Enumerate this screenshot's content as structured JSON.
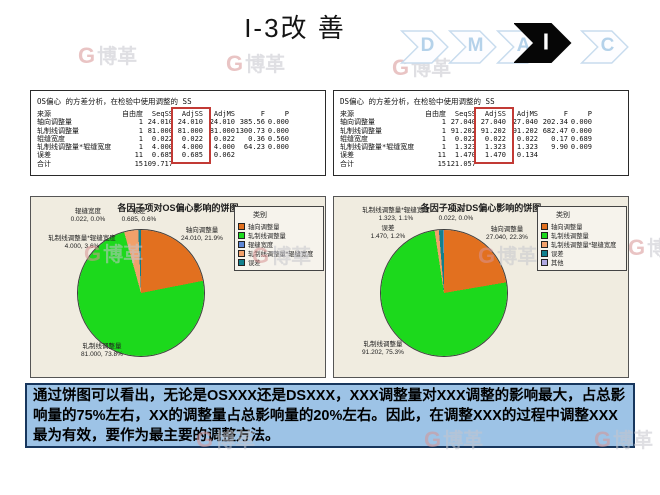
{
  "slide": {
    "title": "I-3改 善",
    "dmaic": {
      "steps": [
        {
          "label": "D",
          "active": false
        },
        {
          "label": "M",
          "active": false
        },
        {
          "label": "A",
          "active": false
        },
        {
          "label": "I",
          "active": true
        },
        {
          "label": "C",
          "active": false
        }
      ],
      "active_color": "#000000",
      "inactive_letter_color": "#B5D2EA"
    }
  },
  "watermark": {
    "logo": "G",
    "text": "博革"
  },
  "anova_left": {
    "title": "OS偏心 的方差分析，在检验中使用调整的 SS",
    "headers": [
      "来源",
      "自由度",
      "SeqSS",
      "AdjSS",
      "AdjMS",
      "F",
      "P"
    ],
    "rows": [
      [
        "轴向调整量",
        "1",
        "24.010",
        "24.010",
        "24.010",
        "385.56",
        "0.000"
      ],
      [
        "轧制线调整量",
        "1",
        "81.000",
        "81.000",
        "81.000",
        "1300.73",
        "0.000"
      ],
      [
        "辊缝宽度",
        "1",
        "0.022",
        "0.022",
        "0.022",
        "0.36",
        "0.560"
      ],
      [
        "轧制线调整量*辊缝宽度",
        "1",
        "4.000",
        "4.000",
        "4.000",
        "64.23",
        "0.000"
      ],
      [
        "误差",
        "11",
        "0.685",
        "0.685",
        "0.062",
        "",
        ""
      ],
      [
        "合计",
        "15",
        "109.717",
        "",
        "",
        "",
        ""
      ]
    ],
    "highlighted_column": "AdjSS",
    "highlight_color": "#c23a35"
  },
  "anova_right": {
    "title": "DS偏心 的方差分析，在检验中使用调整的 SS",
    "headers": [
      "来源",
      "自由度",
      "SeqSS",
      "AdjSS",
      "AdjMS",
      "F",
      "P"
    ],
    "rows": [
      [
        "轴向调整量",
        "1",
        "27.040",
        "27.040",
        "27.040",
        "202.34",
        "0.000"
      ],
      [
        "轧制线调整量",
        "1",
        "91.202",
        "91.202",
        "91.202",
        "682.47",
        "0.000"
      ],
      [
        "辊缝宽度",
        "1",
        "0.022",
        "0.022",
        "0.022",
        "0.17",
        "0.689"
      ],
      [
        "轧制线调整量*辊缝宽度",
        "1",
        "1.323",
        "1.323",
        "1.323",
        "9.90",
        "0.009"
      ],
      [
        "误差",
        "11",
        "1.470",
        "1.470",
        "0.134",
        "",
        ""
      ],
      [
        "合计",
        "15",
        "121.057",
        "",
        "",
        "",
        ""
      ]
    ],
    "highlighted_column": "AdjSS",
    "highlight_color": "#c23a35"
  },
  "chart_data": [
    {
      "type": "pie",
      "panel": "pieL",
      "title": "各因子项对OS偏心影响的饼图",
      "legend_title": "类别",
      "legend_position": "right",
      "background": "#F0ECE0",
      "slices": [
        {
          "label": "轴向调整量",
          "value": 24.01,
          "pct": 21.9,
          "value_label": "24.010, 21.9%",
          "color": "#E2701F"
        },
        {
          "label": "轧制线调整量",
          "value": 81.0,
          "pct": 73.8,
          "value_label": "81.000, 73.8%",
          "color": "#1CD91C"
        },
        {
          "label": "辊缝宽度",
          "value": 0.022,
          "pct": 0.0,
          "value_label": "0.022, 0.0%",
          "color": "#5E86D5"
        },
        {
          "label": "轧制线调整量*辊缝宽度",
          "value": 4.0,
          "pct": 3.6,
          "value_label": "4.000, 3.6%",
          "color": "#F2A06A"
        },
        {
          "label": "误差",
          "value": 0.685,
          "pct": 0.6,
          "value_label": "0.685, 0.6%",
          "color": "#11808D"
        }
      ]
    },
    {
      "type": "pie",
      "panel": "pieR",
      "title": "各因子项对DS偏心影响的饼图",
      "legend_title": "类别",
      "legend_position": "right",
      "background": "#F0ECE0",
      "slices": [
        {
          "label": "轴向调整量",
          "value": 27.04,
          "pct": 22.3,
          "value_label": "27.040, 22.3%",
          "color": "#E2701F"
        },
        {
          "label": "轧制线调整量",
          "value": 91.202,
          "pct": 75.3,
          "value_label": "91.202, 75.3%",
          "color": "#1CD91C"
        },
        {
          "label": "轧制线调整量*辊缝宽度",
          "value": 1.323,
          "pct": 1.1,
          "value_label": "1.323, 1.1%",
          "color": "#F2A06A"
        },
        {
          "label": "误差",
          "value": 1.47,
          "pct": 1.2,
          "value_label": "1.470, 1.2%",
          "color": "#11808D"
        },
        {
          "label": "其他",
          "chart_name": "Other",
          "value": 0.022,
          "pct": 0.0,
          "value_label": "0.022, 0.0%",
          "color": "#AFA8E2"
        }
      ]
    }
  ],
  "conclusion": {
    "text": "通过饼图可以看出，无论是OSXXX还是DSXXX，XXX调整量对XXX调整的影响最大，占总影响量的75%左右，XX的调整量占总影响量的20%左右。因此，在调整XXX的过程中调整XXX最为有效，要作为最主要的调整方法。",
    "background": "#9DC3E6",
    "border_color": "#17365D"
  }
}
